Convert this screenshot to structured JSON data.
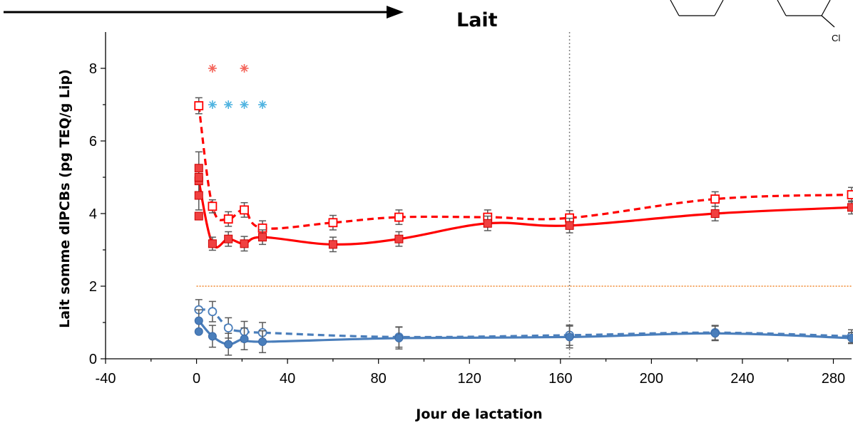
{
  "chart_data": {
    "type": "line",
    "title": "Lait",
    "xlabel": "Jour de lactation",
    "ylabel": "Lait somme dlPCBs (pg TEQ/g Lip)",
    "xlim": [
      -40,
      288
    ],
    "ylim": [
      0,
      9
    ],
    "xticks": [
      -40,
      0,
      40,
      80,
      120,
      160,
      200,
      240,
      280
    ],
    "yticks": [
      0,
      2,
      4,
      6,
      8
    ],
    "grid": false,
    "legend": "none",
    "structure_label": "Cl",
    "reference_line": {
      "y": 2,
      "color": "#f4a460"
    },
    "vertical_marker": {
      "x": 164,
      "color": "#808080"
    },
    "series": [
      {
        "style": "dashed",
        "marker": "open-square",
        "color": "#ff0000",
        "x": [
          1,
          7,
          14,
          21,
          29,
          60,
          89,
          128,
          164,
          228,
          288
        ],
        "y": [
          6.97,
          4.2,
          3.85,
          4.1,
          3.6,
          3.75,
          3.9,
          3.9,
          3.88,
          4.4,
          4.52
        ],
        "err": [
          0.22,
          0.18,
          0.2,
          0.2,
          0.2,
          0.2,
          0.2,
          0.2,
          0.2,
          0.2,
          0.2
        ]
      },
      {
        "style": "solid",
        "marker": "filled-square",
        "color": "#ff0000",
        "x": [
          1,
          7,
          14,
          21,
          29,
          60,
          89,
          128,
          164,
          228,
          288
        ],
        "y": [
          4.9,
          3.17,
          3.3,
          3.17,
          3.35,
          3.15,
          3.3,
          3.73,
          3.67,
          4.0,
          4.17
        ],
        "err": [
          0.8,
          0.18,
          0.2,
          0.2,
          0.2,
          0.2,
          0.2,
          0.2,
          0.2,
          0.2,
          0.18
        ]
      },
      {
        "style": "solid",
        "marker": "filled-square",
        "color": "#ff0000",
        "points_only": true,
        "x": [
          1,
          1,
          1,
          1
        ],
        "y": [
          5.25,
          5.0,
          4.5,
          3.93
        ],
        "err": [
          0,
          0,
          0,
          0
        ]
      },
      {
        "style": "dashed",
        "marker": "open-circle",
        "color": "#4a7ebb",
        "x": [
          1,
          7,
          14,
          21,
          29,
          89,
          164,
          228,
          288
        ],
        "y": [
          1.35,
          1.3,
          0.85,
          0.75,
          0.72,
          0.6,
          0.65,
          0.72,
          0.62
        ],
        "err": [
          0.28,
          0.28,
          0.28,
          0.28,
          0.28,
          0.28,
          0.28,
          0.2,
          0.18
        ]
      },
      {
        "style": "solid",
        "marker": "filled-circle",
        "color": "#4a7ebb",
        "x": [
          1,
          7,
          14,
          21,
          29,
          89,
          164,
          228,
          288
        ],
        "y": [
          1.05,
          0.62,
          0.4,
          0.55,
          0.47,
          0.57,
          0.6,
          0.7,
          0.57
        ],
        "err": [
          0.3,
          0.3,
          0.3,
          0.3,
          0.3,
          0.3,
          0.3,
          0.2,
          0.15
        ]
      },
      {
        "style": "none",
        "marker": "filled-circle",
        "color": "#4a7ebb",
        "points_only": true,
        "x": [
          1
        ],
        "y": [
          0.75
        ],
        "err": [
          0
        ]
      }
    ],
    "significance": [
      {
        "row_y": 8,
        "color": "#f4655b",
        "x": [
          7,
          21
        ]
      },
      {
        "row_y": 7,
        "color": "#4fb3e0",
        "x": [
          7,
          14,
          21,
          29
        ]
      }
    ]
  }
}
